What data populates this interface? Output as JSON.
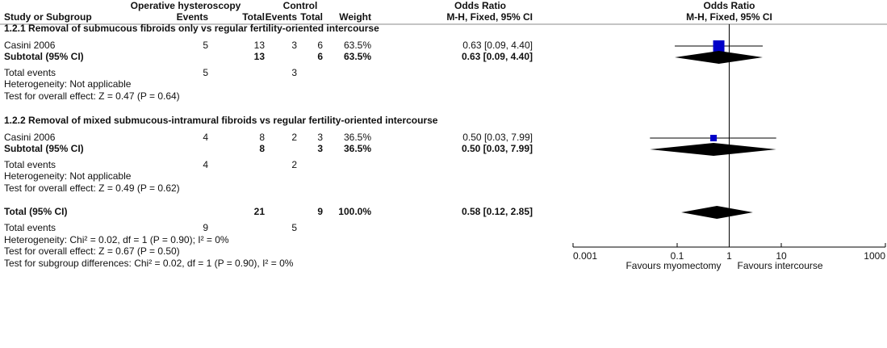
{
  "chart_data": {
    "type": "forest",
    "header": {
      "exp_group": "Operative hysteroscopy",
      "ctl_group": "Control",
      "effect": "Odds Ratio",
      "columns": [
        "Study or Subgroup",
        "Events",
        "Total",
        "Events",
        "Total",
        "Weight",
        "M-H, Fixed, 95% CI"
      ],
      "plot_title": "Odds Ratio",
      "plot_method": "M-H, Fixed, 95% CI"
    },
    "groups": [
      {
        "title": "1.2.1 Removal of submucous fibroids only vs regular fertility-oriented intercourse",
        "studies": [
          {
            "study": "Casini 2006",
            "exp_events": 5,
            "exp_total": 13,
            "ctl_events": 3,
            "ctl_total": 6,
            "weight": 63.5,
            "weight_label": "63.5%",
            "ci": "0.63 [0.09, 4.40]",
            "or": 0.63,
            "lower": 0.09,
            "upper": 4.4
          }
        ],
        "subtotal": {
          "label": "Subtotal (95% CI)",
          "exp_total": 13,
          "ctl_total": 6,
          "weight_label": "63.5%",
          "ci": "0.63 [0.09, 4.40]",
          "or": 0.63,
          "lower": 0.09,
          "upper": 4.4
        },
        "total_events": {
          "label": "Total events",
          "exp": 5,
          "ctl": 3
        },
        "heterogeneity": "Heterogeneity: Not applicable",
        "overall_effect": "Test for overall effect: Z = 0.47 (P = 0.64)"
      },
      {
        "title": "1.2.2 Removal of mixed submucous-intramural fibroids vs regular fertility-oriented intercourse",
        "studies": [
          {
            "study": "Casini 2006",
            "exp_events": 4,
            "exp_total": 8,
            "ctl_events": 2,
            "ctl_total": 3,
            "weight": 36.5,
            "weight_label": "36.5%",
            "ci": "0.50 [0.03, 7.99]",
            "or": 0.5,
            "lower": 0.03,
            "upper": 7.99
          }
        ],
        "subtotal": {
          "label": "Subtotal (95% CI)",
          "exp_total": 8,
          "ctl_total": 3,
          "weight_label": "36.5%",
          "ci": "0.50 [0.03, 7.99]",
          "or": 0.5,
          "lower": 0.03,
          "upper": 7.99
        },
        "total_events": {
          "label": "Total events",
          "exp": 4,
          "ctl": 2
        },
        "heterogeneity": "Heterogeneity: Not applicable",
        "overall_effect": "Test for overall effect: Z = 0.49 (P = 0.62)"
      }
    ],
    "overall": {
      "label": "Total (95% CI)",
      "exp_total": 21,
      "ctl_total": 9,
      "weight_label": "100.0%",
      "ci": "0.58 [0.12, 2.85]",
      "or": 0.58,
      "lower": 0.12,
      "upper": 2.85
    },
    "overall_events": {
      "label": "Total events",
      "exp": 9,
      "ctl": 5
    },
    "heterogeneity": "Heterogeneity: Chi² = 0.02, df = 1 (P = 0.90); I² = 0%",
    "overall_effect": "Test for overall effect: Z = 0.67 (P = 0.50)",
    "subgroup_differences": "Test for subgroup differences: Chi² = 0.02, df = 1 (P = 0.90), I² = 0%",
    "xlim": [
      0.001,
      1000
    ],
    "xticks": [
      0.001,
      0.1,
      1,
      10,
      1000
    ],
    "log_x": true,
    "favours_left": "Favours myomectomy",
    "favours_right": "Favours intercourse",
    "square_color": "#0000c8",
    "diamond_color": "#000000"
  }
}
